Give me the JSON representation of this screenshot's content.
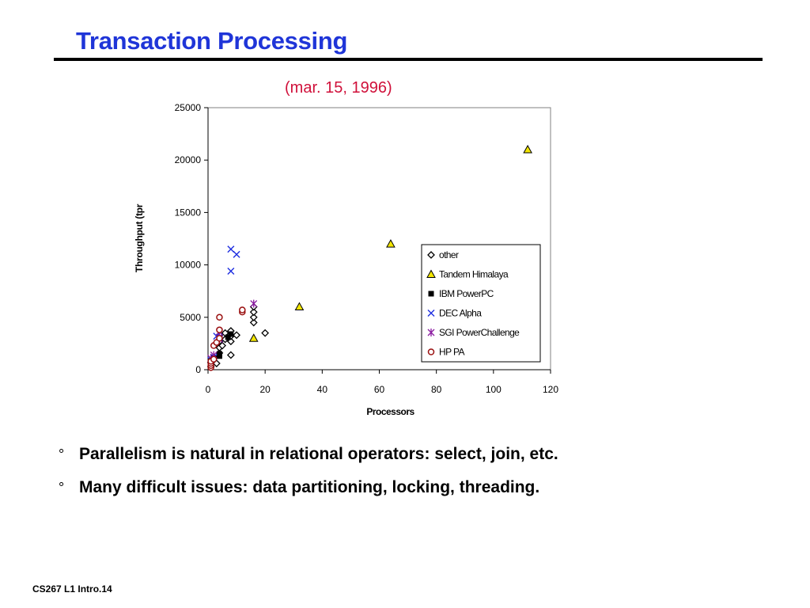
{
  "slide": {
    "title": "Transaction Processing",
    "bullets": [
      {
        "glyph": "°",
        "text": "Parallelism is natural in relational operators: select, join, etc."
      },
      {
        "glyph": "°",
        "text": "Many difficult issues: data partitioning, locking, threading."
      }
    ],
    "footer": "CS267  L1  Intro.14"
  },
  "chart_data": {
    "type": "scatter",
    "subtitle": "(mar. 15, 1996)",
    "xlabel": "Processors",
    "ylabel": "Throughput (tpr",
    "xlim": [
      0,
      120
    ],
    "ylim": [
      0,
      25000
    ],
    "xticks": [
      0,
      20,
      40,
      60,
      80,
      100,
      120
    ],
    "yticks": [
      0,
      5000,
      10000,
      15000,
      20000,
      25000
    ],
    "grid": false,
    "legend": "inside-right",
    "series": [
      {
        "name": "other",
        "marker": "diamond",
        "color": "#000000",
        "points": [
          [
            1,
            300
          ],
          [
            1,
            700
          ],
          [
            2,
            1200
          ],
          [
            3,
            600
          ],
          [
            4,
            1600
          ],
          [
            4,
            2100
          ],
          [
            4,
            2700
          ],
          [
            4,
            3300
          ],
          [
            5,
            2300
          ],
          [
            6,
            2900
          ],
          [
            6,
            3500
          ],
          [
            8,
            1400
          ],
          [
            8,
            2700
          ],
          [
            8,
            3200
          ],
          [
            8,
            3700
          ],
          [
            10,
            3300
          ],
          [
            16,
            4500
          ],
          [
            16,
            5000
          ],
          [
            16,
            5500
          ],
          [
            16,
            6000
          ],
          [
            20,
            3500
          ]
        ]
      },
      {
        "name": "Tandem Himalaya",
        "marker": "triangle",
        "color": "#f3e600",
        "points": [
          [
            16,
            3000
          ],
          [
            32,
            6000
          ],
          [
            64,
            12000
          ],
          [
            112,
            21000
          ]
        ]
      },
      {
        "name": "IBM PowerPC",
        "marker": "square",
        "color": "#000000",
        "points": [
          [
            1,
            500
          ],
          [
            1,
            900
          ],
          [
            2,
            1100
          ],
          [
            4,
            1300
          ],
          [
            4,
            1500
          ],
          [
            7,
            3100
          ],
          [
            8,
            3400
          ]
        ]
      },
      {
        "name": "DEC Alpha",
        "marker": "x",
        "color": "#1f2fe0",
        "points": [
          [
            1,
            900
          ],
          [
            2,
            1200
          ],
          [
            3,
            3200
          ],
          [
            4,
            3100
          ],
          [
            8,
            9400
          ],
          [
            8,
            11500
          ],
          [
            10,
            11000
          ]
        ]
      },
      {
        "name": "SGI PowerChallenge",
        "marker": "asterisk",
        "color": "#8a1aa0",
        "points": [
          [
            1,
            1100
          ],
          [
            2,
            1400
          ],
          [
            4,
            2900
          ],
          [
            4,
            3600
          ],
          [
            16,
            6300
          ]
        ]
      },
      {
        "name": "HP PA",
        "marker": "circle",
        "color": "#9a1010",
        "points": [
          [
            1,
            200
          ],
          [
            1,
            400
          ],
          [
            1,
            600
          ],
          [
            1,
            800
          ],
          [
            2,
            1000
          ],
          [
            2,
            2300
          ],
          [
            3,
            2600
          ],
          [
            4,
            3000
          ],
          [
            4,
            3800
          ],
          [
            4,
            5000
          ],
          [
            12,
            5500
          ],
          [
            12,
            5700
          ]
        ]
      }
    ]
  }
}
